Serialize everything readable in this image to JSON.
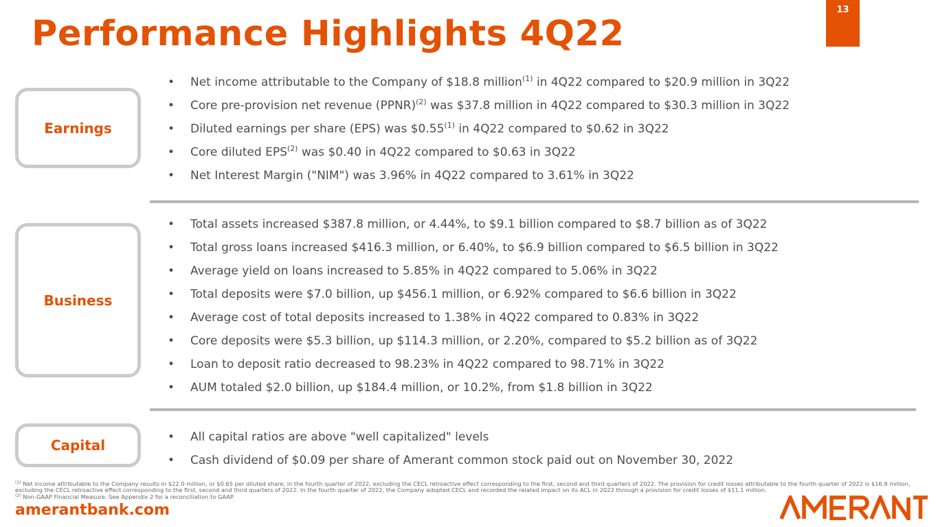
{
  "title": "Performance Highlights 4Q22",
  "page_number": "13",
  "brand_color": "#e35205",
  "sections": [
    {
      "label": "Earnings",
      "bullets": [
        {
          "pre": "Net income attributable to the Company of $18.8 million",
          "sup": "(1)",
          "post": " in 4Q22 compared to $20.9 million in 3Q22"
        },
        {
          "pre": "Core pre-provision net revenue (PPNR)",
          "sup": "(2)",
          "post": " was $37.8 million in 4Q22 compared to $30.3 million in 3Q22"
        },
        {
          "pre": "Diluted earnings per share (EPS) was $0.55",
          "sup": "(1)",
          "post": " in 4Q22 compared to $0.62 in 3Q22"
        },
        {
          "pre": "Core diluted EPS",
          "sup": "(2)",
          "post": " was $0.40 in 4Q22 compared to $0.63 in 3Q22"
        },
        {
          "pre": "Net Interest Margin (\"NIM\") was 3.96% in 4Q22 compared to 3.61% in 3Q22"
        }
      ]
    },
    {
      "label": "Business",
      "bullets": [
        {
          "pre": "Total assets increased $387.8 million, or 4.44%, to $9.1 billion compared to $8.7 billion as of 3Q22"
        },
        {
          "pre": "Total gross loans increased $416.3 million, or 6.40%, to $6.9 billion compared to $6.5 billion in 3Q22"
        },
        {
          "pre": "Average yield on loans increased to 5.85% in 4Q22 compared to 5.06% in 3Q22"
        },
        {
          "pre": "Total deposits were $7.0 billion, up $456.1 million, or 6.92% compared to $6.6 billion in 3Q22"
        },
        {
          "pre": "Average cost of total deposits increased to 1.38% in 4Q22 compared to 0.83% in 3Q22"
        },
        {
          "pre": "Core deposits were $5.3 billion, up $114.3 million, or 2.20%, compared to $5.2 billion as of 3Q22"
        },
        {
          "pre": "Loan to deposit ratio decreased to 98.23% in 4Q22 compared to 98.71% in 3Q22"
        },
        {
          "pre": "AUM totaled $2.0 billion, up $184.4 million, or 10.2%, from $1.8 billion in 3Q22"
        }
      ]
    },
    {
      "label": "Capital",
      "bullets": [
        {
          "pre": "All capital ratios are above \"well capitalized\" levels"
        },
        {
          "pre": "Cash dividend of $0.09 per share of Amerant common stock paid out on November 30, 2022"
        }
      ]
    }
  ],
  "footnotes": [
    {
      "sup": "(1)",
      "text": "Net income attributable to the Company results in $22.0 million, or $0.65 per diluted share, in the fourth quarter of 2022, excluding the CECL retroactive effect corresponding to the first, second and third quarters of 2022. The provision for credit losses attributable to the fourth quarter of 2022 is $16.9 million, excluding the CECL retroactive effect corresponding to the first, second and third quarters of 2022. In the fourth quarter of 2022, the Company adopted CECL and recorded the related impact on its ACL in 2022 through a provision for credit losses of $11.1 million."
    },
    {
      "sup": "(2)",
      "text": "Non-GAAP Financial Measure. See Appendix 2 for a reconciliation to GAAP."
    }
  ],
  "website": "amerantbank.com",
  "logo_text": "AMERANT"
}
